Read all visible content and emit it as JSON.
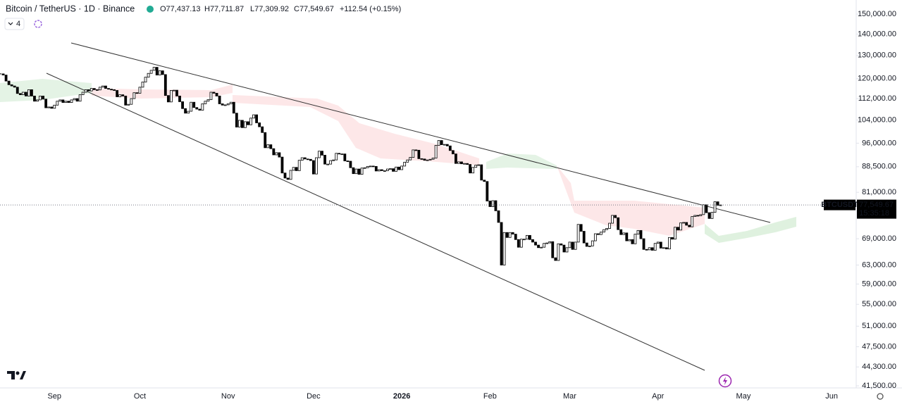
{
  "chart_data": {
    "type": "candlestick",
    "header": {
      "symbol": "Bitcoin / TetherUS · 1D · Binance",
      "ohlc": [
        "O77,437.13",
        "H77,711.87",
        "L77,309.92",
        "C77,549.67",
        "+112.54 (+0.15%)"
      ],
      "indicators": "4"
    },
    "categories": [
      null,
      null,
      null,
      null,
      null,
      null,
      null,
      null,
      null,
      null,
      null,
      null,
      null,
      null,
      null,
      null,
      null,
      null,
      null,
      "Sep",
      null,
      null,
      null,
      null,
      null,
      null,
      null,
      null,
      null,
      null,
      null,
      null,
      null,
      null,
      null,
      null,
      null,
      null,
      null,
      null,
      null,
      null,
      null,
      null,
      null,
      null,
      null,
      null,
      null,
      "Oct",
      null,
      null,
      null,
      null,
      null,
      null,
      null,
      null,
      null,
      null,
      null,
      null,
      null,
      null,
      null,
      null,
      null,
      null,
      null,
      null,
      null,
      null,
      null,
      null,
      null,
      null,
      null,
      null,
      null,
      null,
      "Nov",
      null,
      null,
      null,
      null,
      null,
      null,
      null,
      null,
      null,
      null,
      null,
      null,
      null,
      null,
      null,
      null,
      null,
      null,
      null,
      null,
      null,
      null,
      null,
      null,
      null,
      null,
      null,
      null,
      null,
      "Dec",
      null,
      null,
      null,
      null,
      null,
      null,
      null,
      null,
      null,
      null,
      null,
      null,
      null,
      null,
      null,
      null,
      null,
      null,
      null,
      null,
      null,
      null,
      null,
      null,
      null,
      null,
      null,
      null,
      null,
      null,
      "2026",
      null,
      null,
      null,
      null,
      null,
      null,
      null,
      null,
      null,
      null,
      null,
      null,
      null,
      null,
      null,
      null,
      null,
      null,
      null,
      null,
      null,
      null,
      null,
      null,
      null,
      null,
      null,
      null,
      null,
      null,
      "Feb",
      null,
      null,
      null,
      null,
      null,
      null,
      null,
      null,
      null,
      null,
      null,
      null,
      null,
      null,
      null,
      null,
      null,
      null,
      null,
      null,
      null,
      null,
      null,
      null,
      null,
      null,
      null,
      "Mar",
      null,
      null,
      null,
      null,
      null,
      null,
      null,
      null,
      null,
      null,
      null,
      null,
      null,
      null,
      null,
      null,
      null,
      null,
      null,
      null,
      null,
      null,
      null,
      null,
      null,
      null,
      null,
      null,
      null,
      null,
      "Apr",
      null,
      null,
      null,
      null,
      null,
      null,
      null,
      null,
      null,
      null,
      null,
      null,
      null,
      null,
      null,
      null,
      null,
      null,
      null,
      null,
      null,
      null,
      null,
      null,
      null,
      null,
      null,
      null,
      null,
      "May",
      null,
      null,
      null,
      null,
      null,
      null,
      null,
      null,
      null,
      null,
      null,
      null,
      null,
      null,
      null,
      null,
      null,
      null,
      null,
      null,
      null,
      null,
      null,
      null,
      null,
      null,
      null,
      null,
      null,
      null,
      "Jun"
    ],
    "values": [
      122000,
      121500,
      119000,
      117500,
      117000,
      116500,
      114000,
      113500,
      114500,
      113000,
      115500,
      113000,
      111000,
      111500,
      113000,
      111800,
      108500,
      108800,
      108300,
      109500,
      111000,
      111500,
      110500,
      111000,
      110500,
      111500,
      112000,
      111000,
      113500,
      114500,
      115500,
      115000,
      116000,
      115500,
      115400,
      116500,
      117000,
      116000,
      115700,
      115500,
      115200,
      112700,
      113500,
      113000,
      109500,
      109800,
      112000,
      114300,
      114100,
      116500,
      118600,
      120600,
      122200,
      123500,
      124800,
      121500,
      123300,
      121700,
      113200,
      110700,
      115200,
      115300,
      113000,
      110800,
      108200,
      106500,
      107200,
      110600,
      108600,
      108000,
      107600,
      110000,
      111000,
      111600,
      114500,
      114100,
      113000,
      110000,
      109500,
      109600,
      110000,
      110600,
      106500,
      101500,
      103900,
      101300,
      103400,
      102300,
      104700,
      105900,
      103000,
      101600,
      99600,
      94500,
      95500,
      94200,
      92200,
      92900,
      91500,
      86600,
      85100,
      84700,
      87400,
      88300,
      87300,
      90500,
      91300,
      90900,
      90800,
      90400,
      86300,
      91300,
      93400,
      92100,
      89300,
      89300,
      90400,
      90600,
      92700,
      92500,
      92500,
      90300,
      90200,
      88200,
      86400,
      87800,
      86200,
      88100,
      88200,
      88600,
      88700,
      88600,
      87200,
      87600,
      87300,
      87300,
      87800,
      87900,
      87100,
      88400,
      87600,
      88700,
      89900,
      90600,
      91400,
      93800,
      93700,
      91000,
      90900,
      90500,
      90600,
      90800,
      91200,
      95300,
      96900,
      95500,
      95600,
      95100,
      93600,
      92500,
      89500,
      90000,
      89400,
      89500,
      89200,
      86600,
      88300,
      89000,
      89100,
      84500,
      84100,
      78600,
      77100,
      78700,
      76000,
      73000,
      63000,
      70500,
      69300,
      70500,
      70100,
      68800,
      67000,
      68900,
      68900,
      69800,
      68800,
      68200,
      67500,
      66900,
      67000,
      67900,
      68000,
      68300,
      64600,
      64000,
      67800,
      67500,
      65900,
      66900,
      68200,
      66500,
      68200,
      72500,
      70800,
      68000,
      67200,
      67300,
      68500,
      70200,
      70000,
      70600,
      71200,
      71500,
      72800,
      74800,
      74200,
      71200,
      70000,
      70400,
      68500,
      68800,
      67800,
      70100,
      71000,
      69000,
      66500,
      66400,
      66900,
      66300,
      67900,
      68200,
      66800,
      66900,
      66600,
      69300,
      68900,
      71800,
      71100,
      72900,
      73000,
      72300,
      71900,
      74500,
      74800,
      74700,
      75000,
      77600,
      75500,
      74000,
      75600,
      78400,
      77437.13,
      77549.67,
      null,
      null,
      null,
      null,
      null,
      null,
      null,
      null,
      null,
      null,
      null,
      null,
      null,
      null,
      null,
      null,
      null,
      null,
      null,
      null,
      null,
      null,
      null,
      null,
      null,
      null,
      null,
      null,
      null,
      null,
      null,
      null,
      null,
      null,
      null,
      null,
      null,
      null,
      null
    ],
    "up_color": "#ffffff",
    "down_color": "#000000",
    "current_price": {
      "value": 77549.67,
      "label": "77,549.67",
      "symbol": "BTCUSDT",
      "countdown": "15:35:18"
    },
    "log_scale": true,
    "ylim": [
      41500,
      150000
    ],
    "yticks": [
      {
        "value": 150000,
        "label": "150,000.00"
      },
      {
        "value": 140000,
        "label": "140,000.00"
      },
      {
        "value": 130000,
        "label": "130,000.00"
      },
      {
        "value": 120000,
        "label": "120,000.00"
      },
      {
        "value": 112000,
        "label": "112,000.00"
      },
      {
        "value": 104000,
        "label": "104,000.00"
      },
      {
        "value": 96000,
        "label": "96,000.00"
      },
      {
        "value": 88500,
        "label": "88,500.00"
      },
      {
        "value": 81000,
        "label": "81,000.00"
      },
      {
        "value": 69000,
        "label": "69,000.00"
      },
      {
        "value": 63000,
        "label": "63,000.00"
      },
      {
        "value": 59000,
        "label": "59,000.00"
      },
      {
        "value": 55000,
        "label": "55,000.00"
      },
      {
        "value": 51000,
        "label": "51,000.00"
      },
      {
        "value": 47500,
        "label": "47,500.00"
      },
      {
        "value": 44300,
        "label": "44,300.00"
      },
      {
        "value": 41500,
        "label": "41,500.00"
      }
    ],
    "grid": false
  }
}
